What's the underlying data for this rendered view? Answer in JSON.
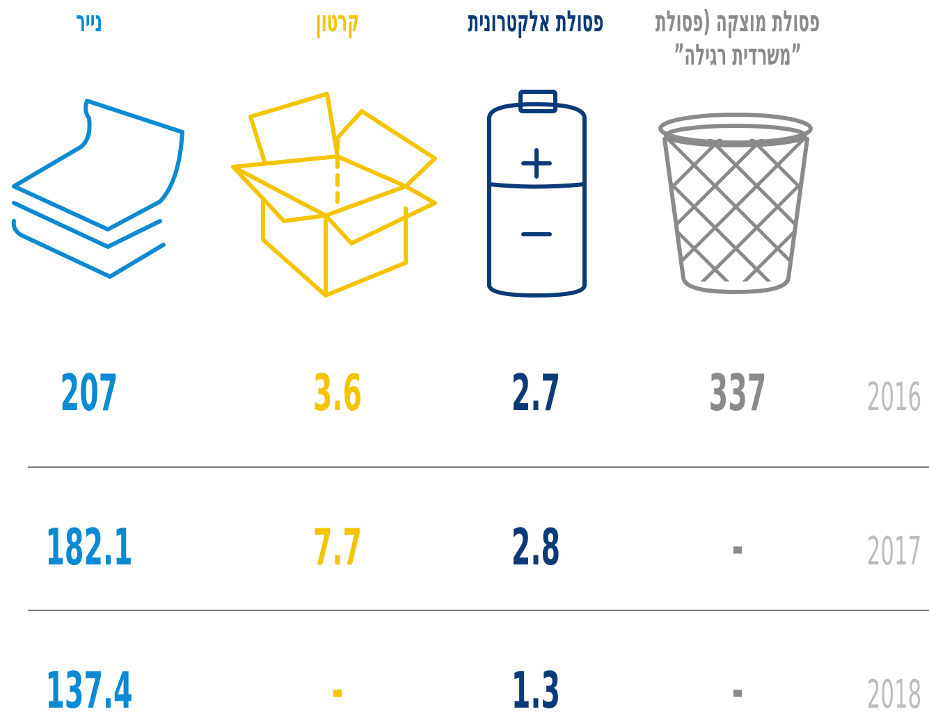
{
  "headers": [
    {
      "lines": [
        "נייר"
      ]
    },
    {
      "lines": [
        "קרטון"
      ]
    },
    {
      "lines": [
        "פסולת אלקטרונית"
      ]
    },
    {
      "lines": [
        "פסולת מוצקה (פסולת",
        "”משרדית רגילה”"
      ]
    }
  ],
  "rows": [
    {
      "year": "2016",
      "values": [
        "207",
        "3.6",
        "2.7",
        "337"
      ]
    },
    {
      "year": "2017",
      "values": [
        "182.1",
        "7.7",
        "2.8",
        "-"
      ]
    },
    {
      "year": "2018",
      "values": [
        "137.4",
        "-",
        "1.3",
        "-"
      ]
    }
  ]
}
